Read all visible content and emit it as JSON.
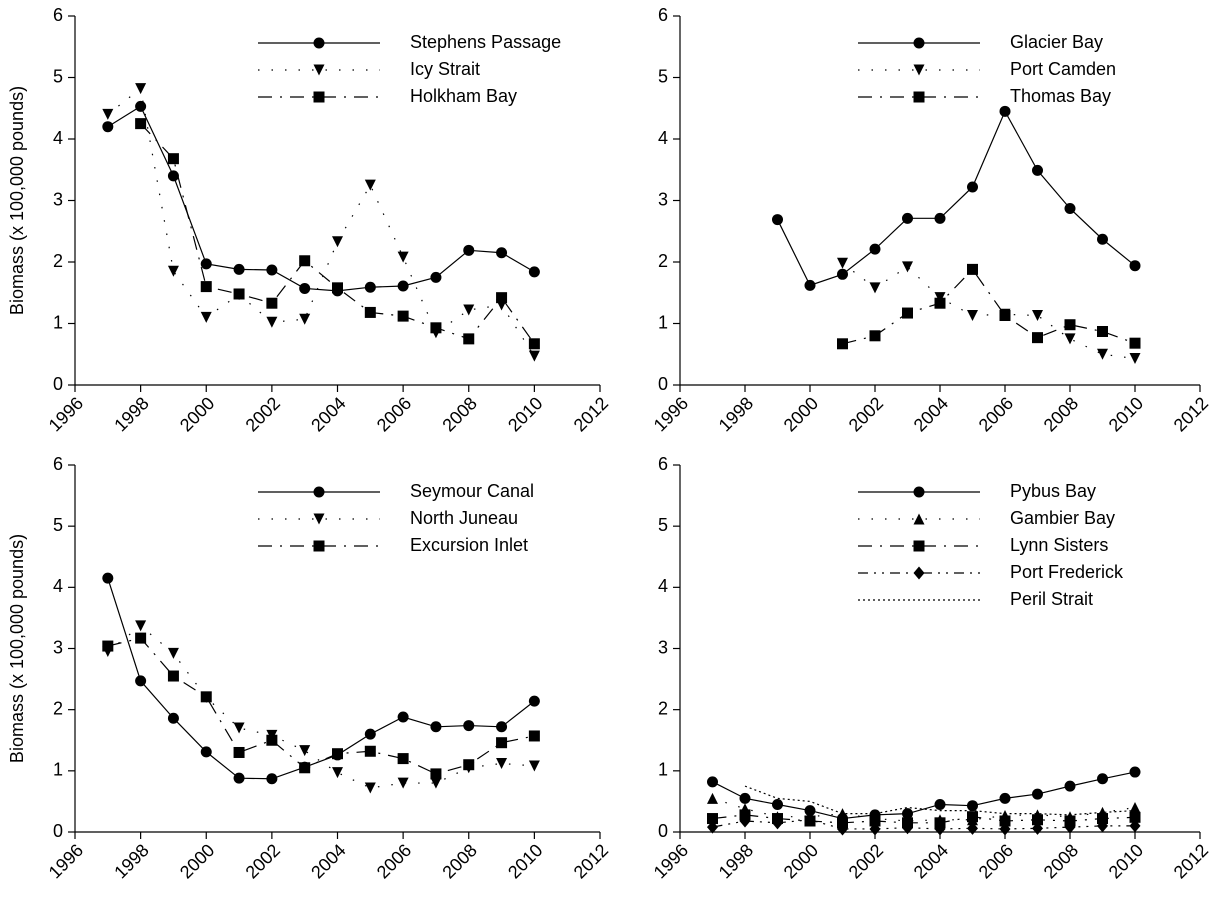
{
  "chart_data": [
    {
      "type": "line",
      "x": [
        1997,
        1998,
        1999,
        2000,
        2001,
        2002,
        2003,
        2004,
        2005,
        2006,
        2007,
        2008,
        2009,
        2010
      ],
      "ylabel": "Biomass (x 100,000 pounds)",
      "xlim": [
        1996,
        2012
      ],
      "xticks": [
        1996,
        1998,
        2000,
        2002,
        2004,
        2006,
        2008,
        2010,
        2012
      ],
      "ylim": [
        0,
        6
      ],
      "yticks": [
        0,
        1,
        2,
        3,
        4,
        5,
        6
      ],
      "legend": "upper right",
      "series": [
        {
          "name": "Stephens Passage",
          "color": "#000000",
          "marker": "circle",
          "dash": "solid",
          "values": [
            4.2,
            4.53,
            3.4,
            1.97,
            1.88,
            1.87,
            1.57,
            1.53,
            1.59,
            1.61,
            1.75,
            2.19,
            2.15,
            1.84
          ]
        },
        {
          "name": "Icy Strait",
          "color": "#000000",
          "marker": "triangle-down",
          "dash": "dotted",
          "values": [
            4.4,
            4.82,
            1.85,
            1.1,
            1.47,
            1.02,
            1.07,
            2.33,
            3.25,
            2.08,
            0.85,
            1.22,
            1.3,
            0.47
          ]
        },
        {
          "name": "Holkham Bay",
          "color": "#000000",
          "marker": "square",
          "dash": "dashdot",
          "values": [
            null,
            4.25,
            3.68,
            1.6,
            1.48,
            1.33,
            2.02,
            1.58,
            1.18,
            1.12,
            0.93,
            0.75,
            1.42,
            0.67
          ]
        }
      ]
    },
    {
      "type": "line",
      "x": [
        1997,
        1998,
        1999,
        2000,
        2001,
        2002,
        2003,
        2004,
        2005,
        2006,
        2007,
        2008,
        2009,
        2010
      ],
      "xlim": [
        1996,
        2012
      ],
      "xticks": [
        1996,
        1998,
        2000,
        2002,
        2004,
        2006,
        2008,
        2010,
        2012
      ],
      "ylim": [
        0,
        6
      ],
      "yticks": [
        0,
        1,
        2,
        3,
        4,
        5,
        6
      ],
      "legend": "upper right",
      "series": [
        {
          "name": "Glacier Bay",
          "color": "#000000",
          "marker": "circle",
          "dash": "solid",
          "values": [
            null,
            null,
            2.69,
            1.62,
            1.8,
            2.21,
            2.71,
            2.71,
            3.22,
            4.45,
            3.49,
            2.87,
            2.37,
            1.94
          ]
        },
        {
          "name": "Port Camden",
          "color": "#000000",
          "marker": "triangle-down",
          "dash": "dotted",
          "values": [
            null,
            null,
            null,
            null,
            1.98,
            1.58,
            1.92,
            1.42,
            1.13,
            1.15,
            1.13,
            0.75,
            0.5,
            0.43
          ]
        },
        {
          "name": "Thomas Bay",
          "color": "#000000",
          "marker": "square",
          "dash": "dashdot",
          "values": [
            null,
            null,
            null,
            null,
            0.67,
            0.8,
            1.17,
            1.33,
            1.88,
            1.13,
            0.77,
            0.98,
            0.87,
            0.68
          ]
        }
      ]
    },
    {
      "type": "line",
      "x": [
        1997,
        1998,
        1999,
        2000,
        2001,
        2002,
        2003,
        2004,
        2005,
        2006,
        2007,
        2008,
        2009,
        2010
      ],
      "ylabel": "Biomass (x 100,000 pounds)",
      "xlim": [
        1996,
        2012
      ],
      "xticks": [
        1996,
        1998,
        2000,
        2002,
        2004,
        2006,
        2008,
        2010,
        2012
      ],
      "ylim": [
        0,
        6
      ],
      "yticks": [
        0,
        1,
        2,
        3,
        4,
        5,
        6
      ],
      "legend": "upper right",
      "series": [
        {
          "name": "Seymour Canal",
          "color": "#000000",
          "marker": "circle",
          "dash": "solid",
          "values": [
            4.15,
            2.47,
            1.86,
            1.31,
            0.88,
            0.87,
            1.06,
            1.26,
            1.6,
            1.88,
            1.72,
            1.74,
            1.72,
            2.14
          ]
        },
        {
          "name": "North Juneau",
          "color": "#000000",
          "marker": "triangle-down",
          "dash": "dotted",
          "values": [
            2.95,
            3.37,
            2.92,
            2.2,
            1.7,
            1.58,
            1.33,
            0.97,
            0.72,
            0.8,
            0.8,
            1.05,
            1.12,
            1.08
          ]
        },
        {
          "name": "Excursion Inlet",
          "color": "#000000",
          "marker": "square",
          "dash": "dashdot",
          "values": [
            3.04,
            3.17,
            2.55,
            2.21,
            1.3,
            1.5,
            1.05,
            1.28,
            1.32,
            1.2,
            0.95,
            1.1,
            1.46,
            1.57
          ]
        }
      ]
    },
    {
      "type": "line",
      "x": [
        1997,
        1998,
        1999,
        2000,
        2001,
        2002,
        2003,
        2004,
        2005,
        2006,
        2007,
        2008,
        2009,
        2010
      ],
      "xlim": [
        1996,
        2012
      ],
      "xticks": [
        1996,
        1998,
        2000,
        2002,
        2004,
        2006,
        2008,
        2010,
        2012
      ],
      "ylim": [
        0,
        6
      ],
      "yticks": [
        0,
        1,
        2,
        3,
        4,
        5,
        6
      ],
      "legend": "upper right",
      "series": [
        {
          "name": "Pybus Bay",
          "color": "#000000",
          "marker": "circle",
          "dash": "solid",
          "values": [
            0.82,
            0.55,
            0.45,
            0.35,
            0.22,
            0.28,
            0.3,
            0.45,
            0.43,
            0.55,
            0.62,
            0.75,
            0.87,
            0.98
          ]
        },
        {
          "name": "Gambier Bay",
          "color": "#000000",
          "marker": "triangle-up",
          "dash": "dotted",
          "values": [
            0.55,
            0.38,
            0.25,
            0.25,
            0.3,
            0.22,
            0.18,
            0.2,
            0.2,
            0.27,
            0.28,
            0.25,
            0.32,
            0.4
          ]
        },
        {
          "name": "Lynn Sisters",
          "color": "#000000",
          "marker": "square",
          "dash": "dashdot",
          "values": [
            0.22,
            0.28,
            0.22,
            0.18,
            0.15,
            0.18,
            0.15,
            0.15,
            0.25,
            0.18,
            0.2,
            0.18,
            0.22,
            0.24
          ]
        },
        {
          "name": "Port Frederick",
          "color": "#000000",
          "marker": "diamond",
          "dash": "dashdotdot",
          "values": [
            0.08,
            0.18,
            0.15,
            0.2,
            0.05,
            0.05,
            0.07,
            0.05,
            0.06,
            0.05,
            0.06,
            0.08,
            0.1,
            0.1
          ]
        },
        {
          "name": "Peril Strait",
          "color": "#000000",
          "marker": "none",
          "dash": "dense-dot",
          "values": [
            null,
            0.75,
            0.55,
            0.5,
            0.3,
            0.3,
            0.4,
            0.35,
            0.35,
            0.3,
            0.3,
            0.28,
            0.32,
            0.35
          ]
        }
      ]
    }
  ]
}
